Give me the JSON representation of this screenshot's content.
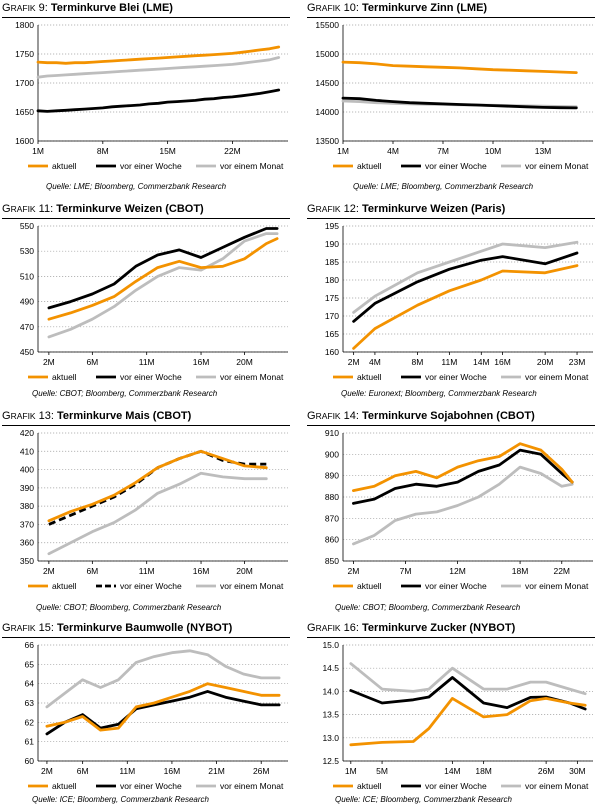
{
  "colors": {
    "aktuell": "#F39200",
    "woche": "#000000",
    "monat": "#BDBDBD",
    "grid": "#A0A0A0"
  },
  "legend_labels": [
    "aktuell",
    "vor einer Woche",
    "vor einem Monat"
  ],
  "chart_data": [
    {
      "id": "g9",
      "grafik_first": "G",
      "grafik_rest": "RAFIK",
      "number": "9:",
      "title": "Terminkurve Blei (LME)",
      "type": "line",
      "ylim": [
        1600,
        1800
      ],
      "yticks": [
        1600,
        1650,
        1700,
        1750,
        1800
      ],
      "xlim": [
        1,
        28
      ],
      "xticks": [
        1,
        8,
        15,
        22
      ],
      "xticklabels": [
        "1M",
        "8M",
        "15M",
        "22M"
      ],
      "x": [
        1,
        2,
        3,
        4,
        5,
        6,
        7,
        8,
        9,
        10,
        11,
        12,
        13,
        14,
        15,
        16,
        17,
        18,
        19,
        20,
        21,
        22,
        23,
        24,
        25,
        26,
        27
      ],
      "series": [
        {
          "name": "aktuell",
          "values": [
            1736,
            1735,
            1735,
            1734,
            1735,
            1735,
            1736,
            1737,
            1738,
            1739,
            1740,
            1741,
            1742,
            1743,
            1744,
            1745,
            1746,
            1747,
            1748,
            1749,
            1750,
            1751,
            1753,
            1755,
            1757,
            1759,
            1762
          ]
        },
        {
          "name": "vor einer Woche",
          "values": [
            1652,
            1651,
            1652,
            1653,
            1654,
            1655,
            1656,
            1657,
            1659,
            1660,
            1661,
            1662,
            1664,
            1665,
            1667,
            1668,
            1669,
            1670,
            1672,
            1673,
            1675,
            1676,
            1678,
            1680,
            1682,
            1685,
            1688
          ]
        },
        {
          "name": "vor einem Monat",
          "values": [
            1710,
            1712,
            1713,
            1714,
            1715,
            1716,
            1717,
            1718,
            1719,
            1720,
            1721,
            1722,
            1723,
            1724,
            1725,
            1726,
            1727,
            1728,
            1729,
            1730,
            1731,
            1732,
            1734,
            1736,
            1738,
            1740,
            1744
          ]
        }
      ],
      "source": "Quelle: LME; Bloomberg, Commerzbank Research"
    },
    {
      "id": "g10",
      "grafik_first": "G",
      "grafik_rest": "RAFIK",
      "number": "10:",
      "title": "Terminkurve Zinn (LME)",
      "type": "line",
      "ylim": [
        13500,
        15500
      ],
      "yticks": [
        13500,
        14000,
        14500,
        15000,
        15500
      ],
      "xlim": [
        1,
        16
      ],
      "xticks": [
        1,
        4,
        7,
        10,
        13
      ],
      "xticklabels": [
        "1M",
        "4M",
        "7M",
        "10M",
        "13M"
      ],
      "x": [
        1,
        2,
        3,
        4,
        5,
        6,
        7,
        8,
        9,
        10,
        11,
        12,
        13,
        14,
        15
      ],
      "series": [
        {
          "name": "aktuell",
          "values": [
            14860,
            14850,
            14830,
            14800,
            14790,
            14780,
            14770,
            14760,
            14745,
            14730,
            14720,
            14710,
            14700,
            14690,
            14680
          ]
        },
        {
          "name": "vor einer Woche",
          "values": [
            14240,
            14230,
            14200,
            14180,
            14160,
            14150,
            14140,
            14130,
            14120,
            14110,
            14100,
            14090,
            14080,
            14075,
            14070
          ]
        },
        {
          "name": "vor einem Monat",
          "values": [
            14190,
            14180,
            14160,
            14150,
            14140,
            14135,
            14130,
            14125,
            14120,
            14115,
            14110,
            14105,
            14100,
            14095,
            14090
          ]
        }
      ],
      "source": "Quelle: LME; Bloomberg, Commerzbank Research"
    },
    {
      "id": "g11",
      "grafik_first": "G",
      "grafik_rest": "RAFIK",
      "number": "11:",
      "title": "Terminkurve Weizen (CBOT)",
      "type": "line",
      "ylim": [
        450,
        550
      ],
      "yticks": [
        450,
        470,
        490,
        510,
        530,
        550
      ],
      "xlim": [
        1,
        24
      ],
      "xticks": [
        2,
        6,
        11,
        16,
        20
      ],
      "xticklabels": [
        "2M",
        "6M",
        "11M",
        "16M",
        "20M"
      ],
      "x": [
        2,
        4,
        6,
        8,
        10,
        12,
        14,
        16,
        18,
        20,
        22,
        23
      ],
      "series": [
        {
          "name": "aktuell",
          "values": [
            476,
            481,
            487,
            494,
            506,
            517,
            522,
            517,
            518,
            524,
            536,
            540
          ]
        },
        {
          "name": "vor einer Woche",
          "values": [
            485,
            490,
            496,
            504,
            518,
            527,
            531,
            525,
            533,
            541,
            548,
            548
          ]
        },
        {
          "name": "vor einem Monat",
          "values": [
            462,
            468,
            476,
            486,
            499,
            510,
            517,
            515,
            524,
            538,
            544,
            544
          ]
        }
      ],
      "source": "Quelle: CBOT; Bloomberg, Commerzbank Research"
    },
    {
      "id": "g12",
      "grafik_first": "G",
      "grafik_rest": "RAFIK",
      "number": "12:",
      "title": "Terminkurve Weizen (Paris)",
      "type": "line",
      "ylim": [
        160,
        195
      ],
      "yticks": [
        160,
        165,
        170,
        175,
        180,
        185,
        190,
        195
      ],
      "xlim": [
        1,
        24.5
      ],
      "xticks": [
        2,
        4,
        8,
        11,
        14,
        16,
        20,
        23
      ],
      "xticklabels": [
        "2M",
        "4M",
        "8M",
        "11M",
        "14M",
        "16M",
        "20M",
        "23M"
      ],
      "x": [
        2,
        4,
        8,
        11,
        14,
        16,
        20,
        23
      ],
      "series": [
        {
          "name": "aktuell",
          "values": [
            161,
            166.5,
            173,
            177,
            180,
            182.5,
            182,
            184
          ]
        },
        {
          "name": "vor einer Woche",
          "values": [
            168.5,
            173.5,
            179.5,
            183,
            185.5,
            186.5,
            184.5,
            187.5
          ]
        },
        {
          "name": "vor einem Monat",
          "values": [
            171,
            175.5,
            182,
            185,
            188,
            190,
            189,
            190.5
          ]
        }
      ],
      "source": "Quelle: Euronext; Bloomberg, Commerzbank Research"
    },
    {
      "id": "g13",
      "grafik_first": "G",
      "grafik_rest": "RAFIK",
      "number": "13:",
      "title": "Terminkurve Mais (CBOT)",
      "type": "line",
      "ylim": [
        350,
        420
      ],
      "yticks": [
        350,
        360,
        370,
        380,
        390,
        400,
        410,
        420
      ],
      "xlim": [
        1,
        24
      ],
      "xticks": [
        2,
        6,
        11,
        16,
        20
      ],
      "xticklabels": [
        "2M",
        "6M",
        "11M",
        "16M",
        "20M"
      ],
      "x": [
        2,
        4,
        6,
        8,
        10,
        12,
        14,
        16,
        18,
        20,
        22
      ],
      "series": [
        {
          "name": "aktuell",
          "values": [
            372,
            377,
            381,
            386,
            393,
            401,
            406,
            410,
            406,
            402,
            401
          ]
        },
        {
          "name": "vor einer Woche",
          "dashed": true,
          "values": [
            370,
            375,
            380,
            385,
            392,
            401,
            406,
            410,
            405,
            403,
            403
          ]
        },
        {
          "name": "vor einem Monat",
          "values": [
            354,
            360,
            366,
            371,
            378,
            387,
            392,
            398,
            396,
            395,
            395
          ]
        }
      ],
      "source": "Quelle: CBOT; Bloomberg, Commerzbank Research"
    },
    {
      "id": "g14",
      "grafik_first": "G",
      "grafik_rest": "RAFIK",
      "number": "14:",
      "title": "Terminkurve Sojabohnen (CBOT)",
      "type": "line",
      "ylim": [
        850,
        910
      ],
      "yticks": [
        850,
        860,
        870,
        880,
        890,
        900,
        910
      ],
      "xlim": [
        1,
        25
      ],
      "xticks": [
        2,
        7,
        12,
        18,
        22
      ],
      "xticklabels": [
        "2M",
        "7M",
        "12M",
        "18M",
        "22M"
      ],
      "x": [
        2,
        4,
        6,
        8,
        10,
        12,
        14,
        16,
        18,
        20,
        22,
        23
      ],
      "series": [
        {
          "name": "aktuell",
          "values": [
            883,
            885,
            890,
            892,
            889,
            894,
            897,
            899,
            905,
            902,
            893,
            887
          ]
        },
        {
          "name": "vor einer Woche",
          "values": [
            877,
            879,
            884,
            886,
            885,
            887,
            892,
            895,
            902,
            900,
            891,
            887
          ]
        },
        {
          "name": "vor einem Monat",
          "values": [
            858,
            862,
            869,
            872,
            873,
            876,
            880,
            886,
            894,
            891,
            885,
            886
          ]
        }
      ],
      "source": "Quelle: CBOT; Bloomberg, Commerzbank Research"
    },
    {
      "id": "g15",
      "grafik_first": "G",
      "grafik_rest": "RAFIK",
      "number": "15:",
      "title": "Terminkurve Baumwolle (NYBOT)",
      "type": "line",
      "ylim": [
        60,
        66
      ],
      "yticks": [
        60,
        61,
        62,
        63,
        64,
        65,
        66
      ],
      "xlim": [
        1,
        29
      ],
      "xticks": [
        2,
        6,
        11,
        16,
        21,
        26
      ],
      "xticklabels": [
        "2M",
        "6M",
        "11M",
        "16M",
        "21M",
        "26M"
      ],
      "x": [
        2,
        4,
        6,
        8,
        10,
        12,
        14,
        16,
        18,
        20,
        22,
        24,
        26,
        28
      ],
      "series": [
        {
          "name": "aktuell",
          "values": [
            61.8,
            62.0,
            62.3,
            61.6,
            61.7,
            62.8,
            63.0,
            63.3,
            63.6,
            64.0,
            63.8,
            63.6,
            63.4,
            63.4
          ]
        },
        {
          "name": "vor einer Woche",
          "values": [
            61.4,
            62.0,
            62.4,
            61.7,
            61.9,
            62.7,
            62.9,
            63.1,
            63.3,
            63.6,
            63.3,
            63.1,
            62.9,
            62.9
          ]
        },
        {
          "name": "vor einem Monat",
          "values": [
            62.8,
            63.5,
            64.2,
            63.8,
            64.2,
            65.1,
            65.4,
            65.6,
            65.7,
            65.5,
            64.9,
            64.5,
            64.3,
            64.3
          ]
        }
      ],
      "source": "Quelle: ICE; Bloomberg, Commerzbank Research"
    },
    {
      "id": "g16",
      "grafik_first": "G",
      "grafik_rest": "RAFIK",
      "number": "16:",
      "title": "Terminkurve Zucker (NYBOT)",
      "type": "line",
      "ylim": [
        12.5,
        15.0
      ],
      "yticks": [
        12.5,
        13.0,
        13.5,
        14.0,
        14.5,
        15.0
      ],
      "ydecimals": 1,
      "xlim": [
        0,
        32
      ],
      "xticks": [
        1,
        5,
        14,
        18,
        26,
        30
      ],
      "xticklabels": [
        "1M",
        "5M",
        "14M",
        "18M",
        "26M",
        "30M"
      ],
      "x": [
        1,
        5,
        9,
        11,
        14,
        18,
        21,
        24,
        26,
        29,
        31
      ],
      "series": [
        {
          "name": "aktuell",
          "values": [
            12.85,
            12.9,
            12.92,
            13.2,
            13.85,
            13.45,
            13.5,
            13.8,
            13.85,
            13.75,
            13.7
          ]
        },
        {
          "name": "vor einer Woche",
          "values": [
            14.02,
            13.75,
            13.82,
            13.88,
            14.3,
            13.75,
            13.65,
            13.87,
            13.88,
            13.75,
            13.62
          ]
        },
        {
          "name": "vor einem Monat",
          "values": [
            14.6,
            14.05,
            14.0,
            14.05,
            14.5,
            14.05,
            14.05,
            14.2,
            14.2,
            14.05,
            13.95
          ]
        }
      ],
      "source": "Quelle: ICE; Bloomberg, Commerzbank Research"
    }
  ]
}
